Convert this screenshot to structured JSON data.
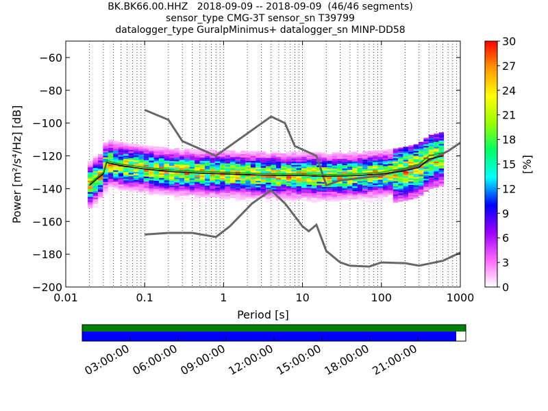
{
  "title_lines": [
    "BK.BK66.00.HHZ   2018-09-09 -- 2018-09-09  (46/46 segments)",
    "sensor_type CMG-3T sensor_sn T39799",
    "datalogger_type GuralpMinimus+ datalogger_sn MINP-DD58"
  ],
  "chart_data": [
    {
      "type": "heatmap",
      "xlabel": "Period [s]",
      "ylabel": "Power [m²/s⁴/Hz] [dB]",
      "x_scale": "log",
      "xlim": [
        0.01,
        1000
      ],
      "ylim": [
        -200,
        -50
      ],
      "x_ticks": [
        0.01,
        0.1,
        1,
        10,
        100,
        1000
      ],
      "x_tick_labels": [
        "0.01",
        "0.1",
        "1",
        "10",
        "100",
        "1000"
      ],
      "y_ticks": [
        -200,
        -180,
        -160,
        -140,
        -120,
        -100,
        -80,
        -60
      ],
      "y_tick_labels": [
        "−200",
        "−180",
        "−160",
        "−140",
        "−120",
        "−100",
        "−80",
        "−60"
      ],
      "grid": "dotted vertical lines at minor log ticks",
      "colorbar": {
        "label": "[%]",
        "range": [
          0,
          30
        ],
        "ticks": [
          0,
          3,
          6,
          9,
          12,
          15,
          18,
          21,
          24,
          27,
          30
        ],
        "colors": [
          "#ffffff",
          "#ff66ff",
          "#9900ff",
          "#0000ff",
          "#00ffff",
          "#00ff66",
          "#99ff00",
          "#ffff00",
          "#ff9900",
          "#ff0000"
        ]
      },
      "series": [
        {
          "color": "#666666",
          "x": [
            0.1,
            0.2,
            0.3,
            0.8,
            4,
            6,
            8,
            15,
            20,
            30,
            100,
            200,
            300,
            700,
            1000
          ],
          "y": [
            -92,
            -98,
            -111,
            -120,
            -96,
            -100,
            -114,
            -120,
            -138,
            -135,
            -132,
            -128,
            -126,
            -117,
            -112
          ]
        },
        {
          "color": "#666666",
          "x": [
            0.1,
            0.2,
            0.4,
            0.8,
            1.2,
            2.3,
            4,
            6,
            10,
            12,
            15,
            20,
            30,
            40,
            70,
            100,
            200,
            300,
            600,
            1000
          ],
          "y": [
            -168,
            -167,
            -167,
            -169.5,
            -163,
            -149,
            -141,
            -149,
            -163,
            -166,
            -162,
            -178,
            -185,
            -187,
            -187.5,
            -185,
            -185.5,
            -187,
            -184,
            -179
          ]
        },
        {
          "color": "#000000",
          "x": [
            0.02,
            0.025,
            0.03,
            0.033,
            0.05,
            0.1,
            0.2,
            0.5,
            1,
            2,
            5,
            10,
            20,
            50,
            100,
            150,
            200,
            300,
            400,
            600
          ],
          "y": [
            -138,
            -134,
            -131,
            -124,
            -126,
            -128,
            -129.5,
            -130.5,
            -131,
            -131.5,
            -132,
            -132,
            -132.5,
            -132,
            -131,
            -130,
            -129,
            -127,
            -122,
            -120
          ]
        },
        {
          "color": "#00aa00",
          "x": [
            0.02,
            0.025,
            0.03,
            0.033,
            0.05,
            0.1,
            0.2,
            0.5,
            1,
            2,
            5,
            10,
            20,
            50,
            100,
            150,
            200,
            300,
            400,
            600
          ],
          "y": [
            -137,
            -133,
            -130,
            -123,
            -125,
            -127,
            -128.5,
            -129.5,
            -130,
            -130.5,
            -131,
            -131,
            -131.5,
            -131,
            -130,
            -128.5,
            -127.5,
            -125,
            -120,
            -118
          ]
        }
      ]
    },
    {
      "type": "bar",
      "x_tick_labels": [
        "03:00:00",
        "06:00:00",
        "09:00:00",
        "12:00:00",
        "15:00:00",
        "18:00:00",
        "21:00:00"
      ],
      "series": [
        {
          "color": "#008000",
          "coverage": 1.0
        },
        {
          "color": "#0000ff",
          "coverage": 0.975
        }
      ]
    }
  ]
}
